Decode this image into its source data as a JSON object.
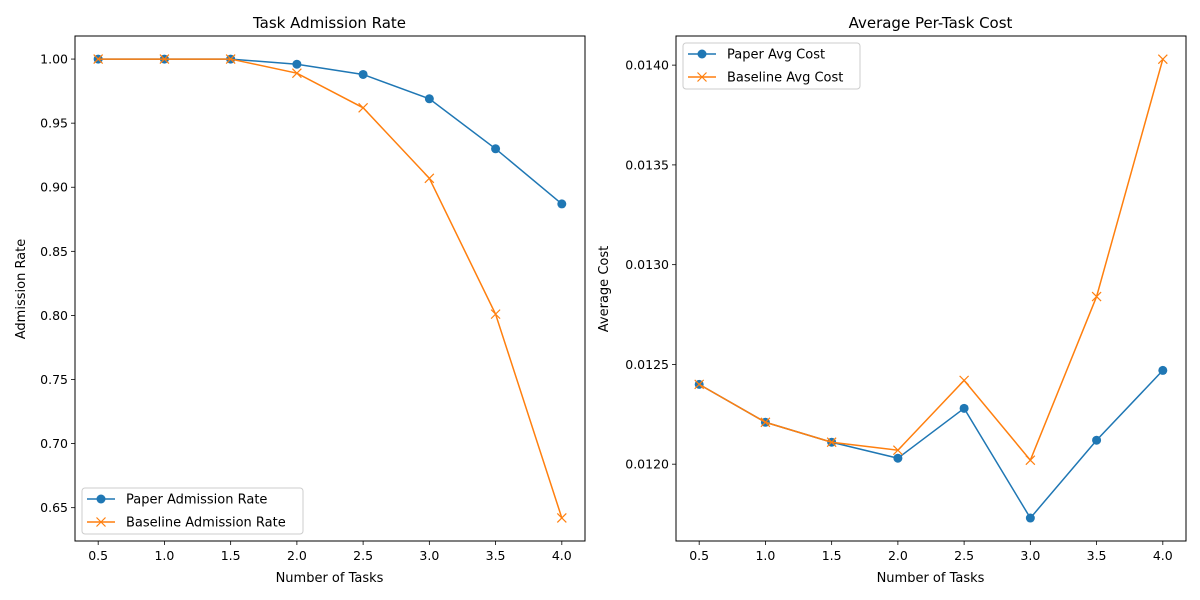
{
  "colors": {
    "paper": "#1f77b4",
    "baseline": "#ff7f0e"
  },
  "chart_data": [
    {
      "type": "line",
      "title": "Task Admission Rate",
      "xlabel": "Number of Tasks",
      "ylabel": "Admission Rate",
      "x": [
        0.5,
        1.0,
        1.5,
        2.0,
        2.5,
        3.0,
        3.5,
        4.0
      ],
      "xticks": [
        "0.5",
        "1.0",
        "1.5",
        "2.0",
        "2.5",
        "3.0",
        "3.5",
        "4.0"
      ],
      "yticks": [
        "0.65",
        "0.70",
        "0.75",
        "0.80",
        "0.85",
        "0.90",
        "0.95",
        "1.00"
      ],
      "xlim": [
        0.325,
        4.175
      ],
      "ylim": [
        0.624,
        1.018
      ],
      "legend": "lower-left",
      "series": [
        {
          "name": "Paper Admission Rate",
          "marker": "circle",
          "color": "#1f77b4",
          "values": [
            1.0,
            1.0,
            1.0,
            0.996,
            0.988,
            0.969,
            0.93,
            0.887
          ]
        },
        {
          "name": "Baseline Admission Rate",
          "marker": "x",
          "color": "#ff7f0e",
          "values": [
            1.0,
            1.0,
            1.0,
            0.989,
            0.962,
            0.907,
            0.801,
            0.642
          ]
        }
      ]
    },
    {
      "type": "line",
      "title": "Average Per-Task Cost",
      "xlabel": "Number of Tasks",
      "ylabel": "Average Cost",
      "x": [
        0.5,
        1.0,
        1.5,
        2.0,
        2.5,
        3.0,
        3.5,
        4.0
      ],
      "xticks": [
        "0.5",
        "1.0",
        "1.5",
        "2.0",
        "2.5",
        "3.0",
        "3.5",
        "4.0"
      ],
      "yticks": [
        "0.0120",
        "0.0125",
        "0.0130",
        "0.0135",
        "0.0140"
      ],
      "xlim": [
        0.325,
        4.175
      ],
      "ylim": [
        0.011615,
        0.014146
      ],
      "legend": "upper-left",
      "series": [
        {
          "name": "Paper Avg Cost",
          "marker": "circle",
          "color": "#1f77b4",
          "values": [
            0.0124,
            0.01221,
            0.01211,
            0.01203,
            0.01228,
            0.01173,
            0.01212,
            0.01247
          ]
        },
        {
          "name": "Baseline Avg Cost",
          "marker": "x",
          "color": "#ff7f0e",
          "values": [
            0.0124,
            0.01221,
            0.01211,
            0.01207,
            0.01242,
            0.01202,
            0.01284,
            0.01403
          ]
        }
      ]
    }
  ]
}
